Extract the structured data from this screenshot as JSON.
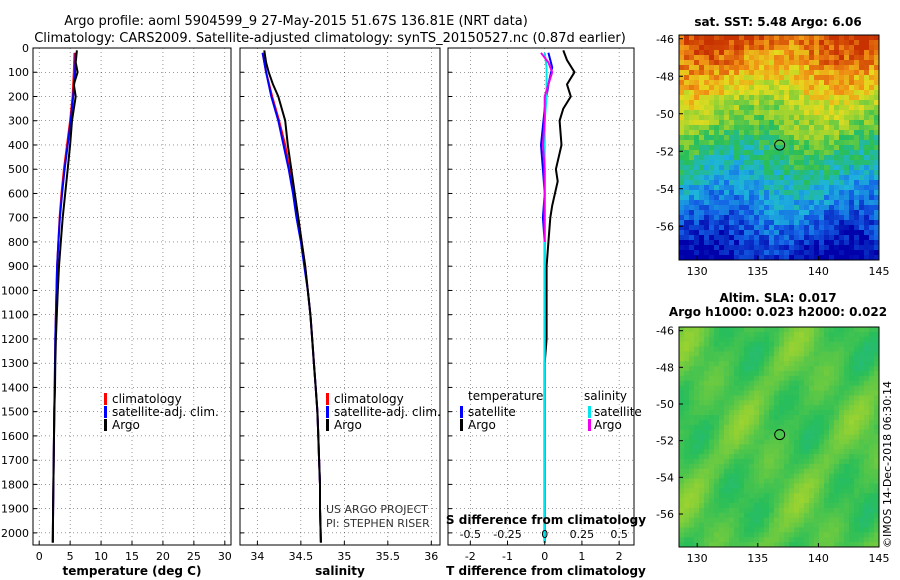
{
  "title_line1": "Argo profile: aoml 5904599_9 27-May-2015 51.67S 136.81E (NRT data)",
  "title_line2": "Climatology: CARS2009. Satellite-adjusted climatology: synTS_20150527.nc (0.87d earlier)",
  "colors": {
    "climatology": "#ff0000",
    "satellite_adj": "#0000ff",
    "argo": "#000000",
    "sat_salinity": "#00e5ee",
    "argo_salinity_diff": "#ee00ee"
  },
  "credit_line1": "US ARGO PROJECT",
  "credit_line2": "PI: STEPHEN RISER",
  "imos_watermark": "©IMOS 14-Dec-2018 06:30:14",
  "chart_data": [
    {
      "type": "line",
      "name": "temperature",
      "xlabel": "temperature (deg C)",
      "xlim": [
        -1,
        31
      ],
      "xticks": [
        0,
        5,
        10,
        15,
        20,
        25,
        30
      ],
      "ylim": [
        2050,
        0
      ],
      "yticks": [
        0,
        100,
        200,
        300,
        400,
        500,
        600,
        700,
        800,
        900,
        1000,
        1100,
        1200,
        1300,
        1400,
        1500,
        1600,
        1700,
        1800,
        1900,
        2000
      ],
      "legend": [
        "climatology",
        "satellite-adj. clim.",
        "Argo"
      ],
      "legend_position": "lower-right",
      "series": [
        {
          "name": "climatology",
          "color_key": "climatology",
          "x": [
            5.7,
            5.6,
            5.4,
            5.0,
            4.5,
            4.0,
            3.6,
            3.3,
            3.1,
            2.9,
            2.8,
            2.7,
            2.6,
            2.55,
            2.5,
            2.45,
            2.4,
            2.35,
            2.3,
            2.25,
            2.2
          ],
          "y": [
            20,
            100,
            200,
            300,
            400,
            500,
            600,
            700,
            800,
            900,
            1000,
            1100,
            1200,
            1300,
            1400,
            1500,
            1600,
            1700,
            1800,
            1900,
            2040
          ]
        },
        {
          "name": "satellite-adj. clim.",
          "color_key": "satellite_adj",
          "x": [
            5.9,
            5.8,
            5.5,
            5.1,
            4.6,
            4.1,
            3.7,
            3.35,
            3.1,
            2.9,
            2.8,
            2.7,
            2.6,
            2.55,
            2.5,
            2.45,
            2.4,
            2.35,
            2.3,
            2.25,
            2.2
          ],
          "y": [
            20,
            100,
            200,
            300,
            400,
            500,
            600,
            700,
            800,
            900,
            1000,
            1100,
            1200,
            1300,
            1400,
            1500,
            1600,
            1700,
            1800,
            1900,
            2040
          ]
        },
        {
          "name": "Argo",
          "color_key": "argo",
          "x": [
            6.1,
            5.9,
            6.2,
            5.6,
            5.9,
            5.3,
            5.0,
            4.6,
            4.2,
            3.8,
            3.5,
            3.2,
            3.0,
            2.85,
            2.7,
            2.6,
            2.55,
            2.45,
            2.4,
            2.35,
            2.3,
            2.25,
            2.2
          ],
          "y": [
            10,
            60,
            100,
            150,
            200,
            300,
            400,
            500,
            600,
            700,
            800,
            900,
            1000,
            1100,
            1200,
            1300,
            1400,
            1500,
            1600,
            1700,
            1800,
            1900,
            2040
          ]
        }
      ]
    },
    {
      "type": "line",
      "name": "salinity",
      "xlabel": "salinity",
      "xlim": [
        33.8,
        36.1
      ],
      "xticks": [
        34,
        34.5,
        35,
        35.5,
        36
      ],
      "ylim": [
        2050,
        0
      ],
      "legend": [
        "climatology",
        "satellite-adj. clim.",
        "Argo"
      ],
      "legend_position": "lower-right",
      "series": [
        {
          "name": "climatology",
          "color_key": "climatology",
          "x": [
            34.06,
            34.1,
            34.17,
            34.25,
            34.32,
            34.37,
            34.42,
            34.47,
            34.51,
            34.55,
            34.58,
            34.61,
            34.63,
            34.65,
            34.67,
            34.69,
            34.7,
            34.71,
            34.72,
            34.72,
            34.73
          ],
          "y": [
            20,
            100,
            200,
            300,
            400,
            500,
            600,
            700,
            800,
            900,
            1000,
            1100,
            1200,
            1300,
            1400,
            1500,
            1600,
            1700,
            1800,
            1900,
            2040
          ]
        },
        {
          "name": "satellite-adj. clim.",
          "color_key": "satellite_adj",
          "x": [
            34.06,
            34.1,
            34.16,
            34.24,
            34.3,
            34.36,
            34.41,
            34.45,
            34.5,
            34.54,
            34.58,
            34.61,
            34.63,
            34.65,
            34.67,
            34.69,
            34.7,
            34.71,
            34.72,
            34.72,
            34.73
          ],
          "y": [
            20,
            100,
            200,
            300,
            400,
            500,
            600,
            700,
            800,
            900,
            1000,
            1100,
            1200,
            1300,
            1400,
            1500,
            1600,
            1700,
            1800,
            1900,
            2040
          ]
        },
        {
          "name": "Argo",
          "color_key": "argo",
          "x": [
            34.08,
            34.1,
            34.13,
            34.18,
            34.24,
            34.32,
            34.35,
            34.39,
            34.43,
            34.47,
            34.51,
            34.55,
            34.58,
            34.61,
            34.63,
            34.65,
            34.67,
            34.69,
            34.7,
            34.71,
            34.72,
            34.72,
            34.73
          ],
          "y": [
            10,
            60,
            100,
            150,
            200,
            300,
            400,
            500,
            600,
            700,
            800,
            900,
            1000,
            1100,
            1200,
            1300,
            1400,
            1500,
            1600,
            1700,
            1800,
            1900,
            2040
          ]
        }
      ]
    },
    {
      "type": "line",
      "name": "differences",
      "xlabel": "T difference from climatology",
      "xlabel_top": "S difference from climatology",
      "xlim": [
        -2.6,
        2.4
      ],
      "xticks": [
        -2,
        -1,
        0,
        1,
        2
      ],
      "xticks_top": [
        "-0.5",
        "-0.25",
        "0",
        "0.25",
        "0.5"
      ],
      "ylim": [
        2050,
        0
      ],
      "legend_left_title": "temperature",
      "legend_left": [
        "satellite",
        "Argo"
      ],
      "legend_right_title": "salinity",
      "legend_right": [
        "satellite",
        "Argo"
      ],
      "series": [
        {
          "name": "temperature satellite",
          "color_key": "satellite_adj",
          "x": [
            0.1,
            0.2,
            0.1,
            0.0,
            -0.1,
            -0.05,
            0.0,
            -0.05,
            0.0,
            0.0,
            0.0,
            0.0,
            0.0,
            0.0,
            0.0,
            0.0,
            0.0,
            0.0,
            0.0
          ],
          "y": [
            20,
            80,
            150,
            250,
            400,
            500,
            600,
            700,
            800,
            900,
            1000,
            1200,
            1300,
            1400,
            1500,
            1600,
            1700,
            1900,
            2040
          ]
        },
        {
          "name": "temperature Argo",
          "color_key": "argo",
          "x": [
            0.5,
            0.6,
            0.8,
            0.6,
            0.7,
            0.5,
            0.4,
            0.45,
            0.3,
            0.35,
            0.2,
            0.15,
            0.1,
            0.05,
            0.05,
            0.05,
            0.0,
            0.0,
            0.0,
            0.0,
            0.0,
            0.0,
            0.0,
            0.0
          ],
          "y": [
            10,
            50,
            100,
            150,
            200,
            250,
            300,
            400,
            500,
            550,
            650,
            700,
            800,
            900,
            1000,
            1200,
            1300,
            1400,
            1500,
            1600,
            1700,
            1800,
            1900,
            2040
          ]
        },
        {
          "name": "salinity satellite",
          "color_key": "sat_salinity",
          "x": [
            0.0,
            0.05,
            0.05,
            0.0,
            0.0,
            0.0,
            0.0,
            0.0,
            0.0,
            0.0,
            0.0,
            0.0,
            0.0,
            0.0,
            0.0,
            0.0
          ],
          "y": [
            20,
            80,
            200,
            300,
            400,
            600,
            700,
            800,
            900,
            1000,
            1200,
            1300,
            1500,
            1700,
            1900,
            2040
          ]
        },
        {
          "name": "salinity Argo",
          "color_key": "argo_salinity_diff",
          "x": [
            -0.1,
            0.1,
            0.2,
            0.1,
            0.0,
            0.0,
            -0.05,
            0.0,
            0.0,
            0.0
          ],
          "y": [
            20,
            60,
            100,
            150,
            200,
            300,
            400,
            500,
            600,
            800
          ]
        }
      ]
    },
    {
      "type": "heatmap",
      "name": "satellite SST map",
      "title": "sat. SST: 5.48 Argo: 6.06",
      "xlim": [
        128.5,
        145
      ],
      "xticks": [
        130,
        135,
        140,
        145
      ],
      "ylim": [
        -57.8,
        -45.8
      ],
      "yticks": [
        -46,
        -48,
        -50,
        -52,
        -54,
        -56
      ],
      "marker": {
        "lon": 136.81,
        "lat": -51.67
      }
    },
    {
      "type": "heatmap",
      "name": "altimetry SLA map",
      "title_line1": "Altim. SLA: 0.017",
      "title_line2": "Argo h1000: 0.023 h2000: 0.022",
      "xlim": [
        128.5,
        145
      ],
      "xticks": [
        130,
        135,
        140,
        145
      ],
      "ylim": [
        -57.8,
        -45.8
      ],
      "yticks": [
        -46,
        -48,
        -50,
        -52,
        -54,
        -56
      ],
      "marker": {
        "lon": 136.81,
        "lat": -51.67
      }
    }
  ]
}
